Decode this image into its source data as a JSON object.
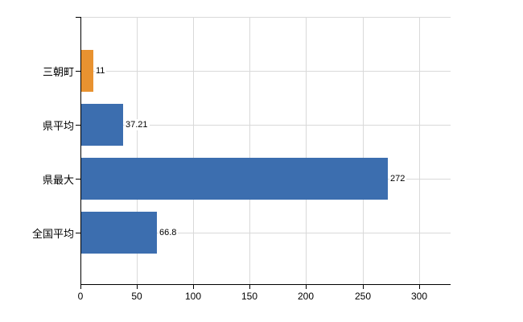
{
  "chart_data": {
    "type": "bar",
    "orientation": "horizontal",
    "title": "",
    "xlabel": "",
    "ylabel": "",
    "categories": [
      "三朝町",
      "県平均",
      "県最大",
      "全国平均"
    ],
    "values": [
      11,
      37.21,
      272,
      66.8
    ],
    "value_labels": [
      "11",
      "37.21",
      "272",
      "66.8"
    ],
    "series": [
      {
        "name": "highlighted-municipality",
        "color": "#E89230",
        "rows": [
          0
        ]
      },
      {
        "name": "reference-values",
        "color": "#3C6EAF",
        "rows": [
          1,
          2,
          3
        ]
      }
    ],
    "bar_colors": [
      "#E89230",
      "#3C6EAF",
      "#3C6EAF",
      "#3C6EAF"
    ],
    "x_ticks": [
      0,
      50,
      100,
      150,
      200,
      250,
      300
    ],
    "x_tick_labels": [
      "0",
      "50",
      "100",
      "150",
      "200",
      "250",
      "300"
    ],
    "xlim": [
      0,
      328
    ],
    "grid": true,
    "legend": false,
    "colors": {
      "bar_blue": "#3C6EAF",
      "bar_orange": "#E89230",
      "gridline": "#D9D9D9",
      "axis": "#000000",
      "background": "#FFFFFF",
      "text": "#000000"
    }
  }
}
